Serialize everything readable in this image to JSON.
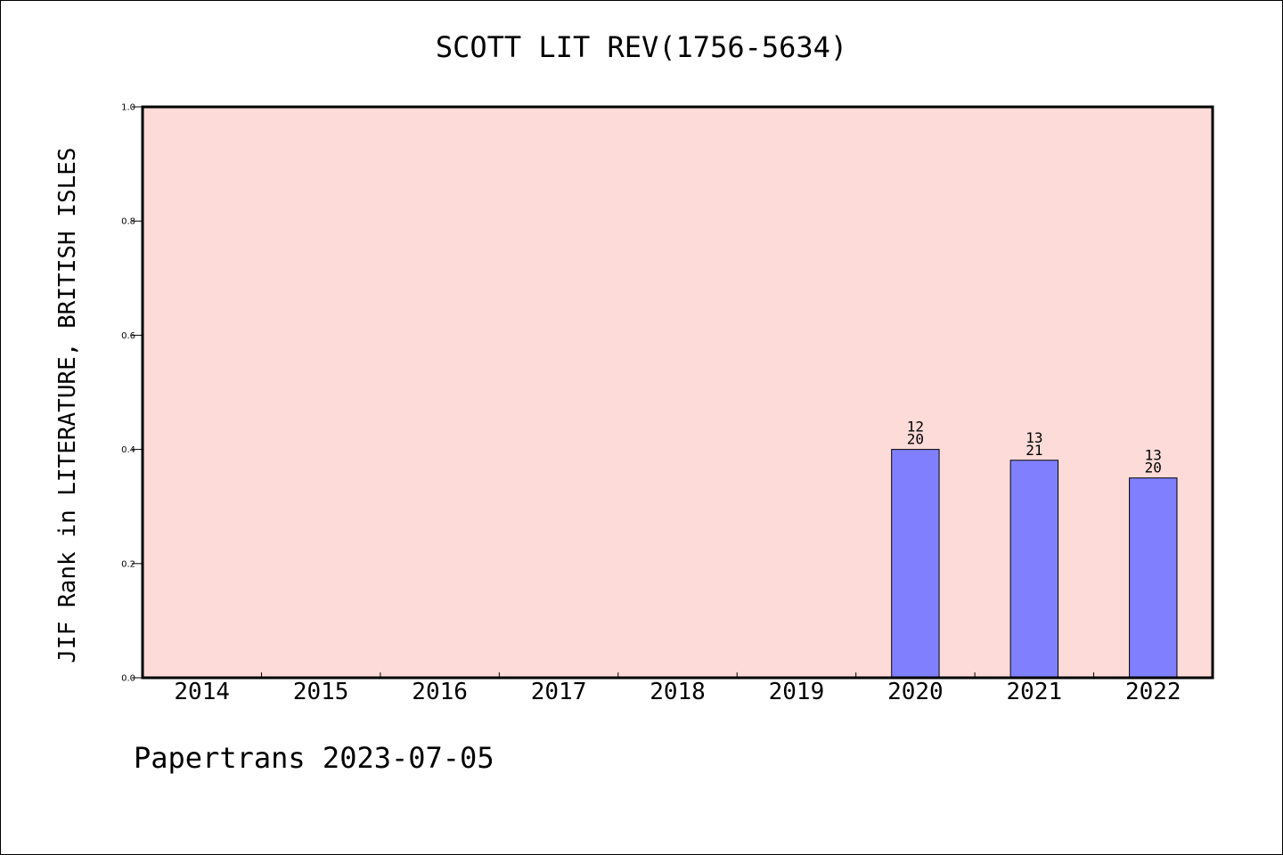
{
  "chart_data": {
    "type": "bar",
    "title": "SCOTT LIT REV(1756-5634)",
    "xlabel": "",
    "ylabel": "JIF Rank in LITERATURE, BRITISH ISLES",
    "categories": [
      "2014",
      "2015",
      "2016",
      "2017",
      "2018",
      "2019",
      "2020",
      "2021",
      "2022"
    ],
    "values": [
      null,
      null,
      null,
      null,
      null,
      null,
      0.4,
      0.381,
      0.35
    ],
    "bar_labels": [
      null,
      null,
      null,
      null,
      null,
      null,
      {
        "rank": "12",
        "total": "20"
      },
      {
        "rank": "13",
        "total": "21"
      },
      {
        "rank": "13",
        "total": "20"
      }
    ],
    "ylim": [
      0,
      1.0
    ],
    "yticks": [
      "0.0",
      "0.2",
      "0.4",
      "0.6",
      "0.8",
      "1.0"
    ],
    "grid": false,
    "legend": "none",
    "colors": {
      "plot_background": "#fddbd8",
      "bar_fill": "#8080ff",
      "bar_stroke": "#000000"
    }
  },
  "footer": "Papertrans 2023-07-05"
}
